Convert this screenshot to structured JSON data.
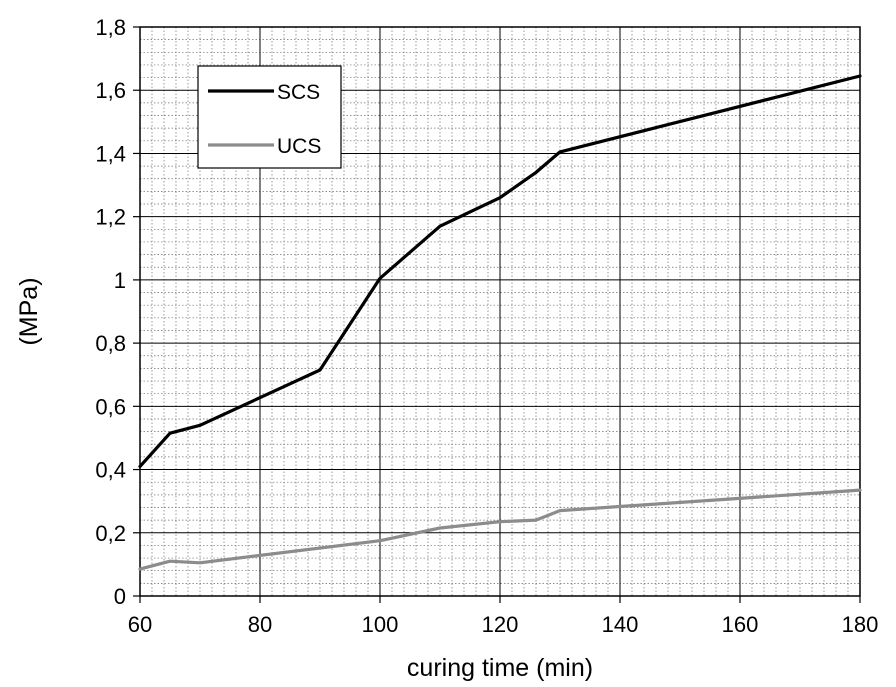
{
  "chart_data": {
    "type": "line",
    "xlabel": "curing time (min)",
    "ylabel": "(MPa)",
    "xlim": [
      60,
      180
    ],
    "ylim": [
      0,
      1.8
    ],
    "x_ticks": [
      "60",
      "80",
      "100",
      "120",
      "140",
      "160",
      "180"
    ],
    "y_ticks": [
      "0",
      "0,2",
      "0,4",
      "0,6",
      "0,8",
      "1",
      "1,2",
      "1,4",
      "1,6",
      "1,8"
    ],
    "grid": true,
    "legend_position": "top-left",
    "series": [
      {
        "name": "SCS",
        "color": "#000000",
        "x": [
          60,
          65,
          70,
          90,
          100,
          110,
          120,
          126,
          130,
          180
        ],
        "y": [
          0.41,
          0.515,
          0.54,
          0.715,
          1.005,
          1.17,
          1.26,
          1.34,
          1.405,
          1.645
        ]
      },
      {
        "name": "UCS",
        "color": "#8c8c8c",
        "x": [
          60,
          65,
          70,
          100,
          110,
          120,
          126,
          130,
          180
        ],
        "y": [
          0.085,
          0.11,
          0.105,
          0.175,
          0.215,
          0.235,
          0.24,
          0.27,
          0.335
        ]
      }
    ]
  }
}
